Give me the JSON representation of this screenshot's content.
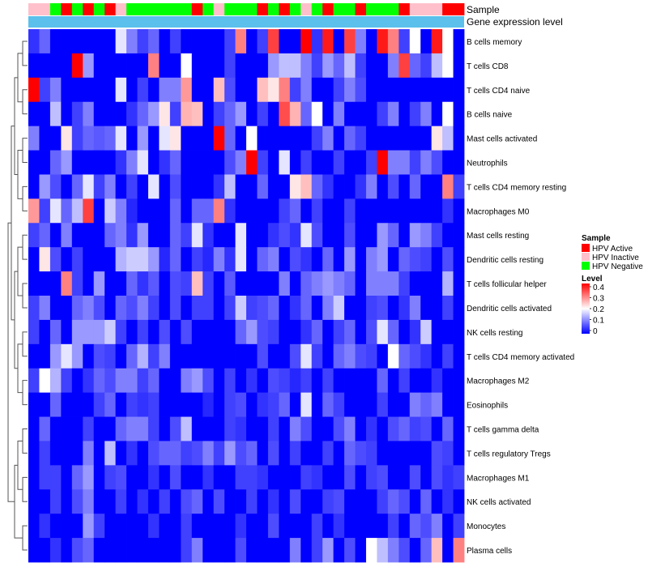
{
  "chart_data": {
    "type": "heatmap",
    "annotation_titles": {
      "sample": "Sample",
      "gene": "Gene expression level"
    },
    "legend_sample": {
      "title": "Sample",
      "entries": [
        {
          "label": "HPV Active",
          "color": "#ff0000"
        },
        {
          "label": "HPV Inactive",
          "color": "#ffc0cb"
        },
        {
          "label": "HPV Negative",
          "color": "#00ff00"
        }
      ]
    },
    "legend_level": {
      "title": "Level",
      "range": [
        0,
        0.4
      ],
      "ticks": [
        "0.4",
        "0.3",
        "0.2",
        "0.1",
        "0"
      ],
      "stops": [
        {
          "value": 0,
          "color": "#0000ff"
        },
        {
          "value": 0.2,
          "color": "#ffffff"
        },
        {
          "value": 0.4,
          "color": "#ff0000"
        }
      ]
    },
    "gene_bar_color": "#5bc0eb",
    "samples": [
      "HPV Inactive",
      "HPV Inactive",
      "HPV Negative",
      "HPV Active",
      "HPV Negative",
      "HPV Active",
      "HPV Negative",
      "HPV Active",
      "HPV Inactive",
      "HPV Negative",
      "HPV Negative",
      "HPV Negative",
      "HPV Negative",
      "HPV Negative",
      "HPV Negative",
      "HPV Active",
      "HPV Negative",
      "HPV Inactive",
      "HPV Negative",
      "HPV Negative",
      "HPV Negative",
      "HPV Active",
      "HPV Negative",
      "HPV Active",
      "HPV Negative",
      "HPV Inactive",
      "HPV Negative",
      "HPV Active",
      "HPV Negative",
      "HPV Negative",
      "HPV Active",
      "HPV Negative",
      "HPV Negative",
      "HPV Negative",
      "HPV Active",
      "HPV Inactive",
      "HPV Inactive",
      "HPV Inactive",
      "HPV Active",
      "HPV Active"
    ],
    "rows": [
      {
        "name": "B cells memory",
        "values": [
          0.04,
          0.08,
          0,
          0,
          0,
          0,
          0,
          0,
          0.18,
          0.1,
          0.05,
          0.08,
          0,
          0.05,
          0,
          0,
          0,
          0,
          0.05,
          0.3,
          0,
          0.05,
          0.35,
          0,
          0,
          0.4,
          0.04,
          0.38,
          0,
          0.35,
          0.1,
          0,
          0.38,
          0.3,
          0.05,
          0.2,
          0,
          0.38,
          0.2,
          0
        ]
      },
      {
        "name": "T cells CD8",
        "values": [
          0,
          0,
          0,
          0,
          0.4,
          0.12,
          0,
          0,
          0,
          0,
          0,
          0.3,
          0,
          0,
          0.2,
          0,
          0,
          0,
          0.05,
          0,
          0,
          0,
          0.12,
          0.15,
          0.15,
          0.1,
          0.05,
          0.12,
          0.08,
          0.15,
          0.05,
          0,
          0,
          0.1,
          0.35,
          0.08,
          0.05,
          0.15,
          0.2,
          0
        ]
      },
      {
        "name": "T cells CD4 naive",
        "values": [
          0.4,
          0.05,
          0.1,
          0,
          0,
          0,
          0,
          0,
          0.18,
          0,
          0.05,
          0,
          0.1,
          0.1,
          0.28,
          0,
          0,
          0.25,
          0.06,
          0,
          0,
          0.25,
          0.22,
          0.3,
          0.05,
          0.1,
          0,
          0,
          0.05,
          0.1,
          0.06,
          0,
          0,
          0,
          0,
          0,
          0,
          0,
          0,
          0
        ]
      },
      {
        "name": "B cells naive",
        "values": [
          0,
          0,
          0.15,
          0,
          0.05,
          0.1,
          0,
          0,
          0,
          0.04,
          0.08,
          0.12,
          0.22,
          0.05,
          0.26,
          0.25,
          0,
          0.05,
          0.08,
          0.12,
          0,
          0.05,
          0,
          0.34,
          0.26,
          0.08,
          0.2,
          0,
          0.1,
          0,
          0,
          0,
          0.05,
          0.1,
          0,
          0.05,
          0.1,
          0,
          0.2,
          0
        ]
      },
      {
        "name": "Mast cells activated",
        "values": [
          0.1,
          0,
          0,
          0.22,
          0.05,
          0.08,
          0.07,
          0.08,
          0.18,
          0,
          0.12,
          0,
          0.18,
          0.22,
          0,
          0,
          0,
          0.4,
          0.08,
          0,
          0.2,
          0,
          0,
          0,
          0,
          0,
          0.05,
          0.1,
          0,
          0.08,
          0.05,
          0,
          0,
          0,
          0,
          0,
          0,
          0.22,
          0.15,
          0
        ]
      },
      {
        "name": "Neutrophils",
        "values": [
          0,
          0,
          0.08,
          0.12,
          0,
          0,
          0,
          0,
          0.04,
          0.1,
          0.18,
          0,
          0.04,
          0.08,
          0,
          0,
          0,
          0,
          0.06,
          0.1,
          0.4,
          0.05,
          0,
          0.18,
          0,
          0.05,
          0,
          0,
          0.05,
          0,
          0,
          0.05,
          0.4,
          0.1,
          0.1,
          0.05,
          0.1,
          0.06,
          0,
          0
        ]
      },
      {
        "name": "T cells CD4 memory resting",
        "values": [
          0,
          0.12,
          0.06,
          0,
          0.08,
          0.18,
          0.05,
          0.1,
          0,
          0.05,
          0,
          0.18,
          0,
          0.06,
          0,
          0,
          0,
          0.04,
          0.15,
          0,
          0,
          0.08,
          0,
          0,
          0.22,
          0.25,
          0.08,
          0.04,
          0,
          0,
          0.04,
          0.1,
          0,
          0.06,
          0,
          0.08,
          0,
          0,
          0.3,
          0.05
        ]
      },
      {
        "name": "Macrophages M0",
        "values": [
          0.28,
          0.05,
          0.18,
          0.08,
          0.15,
          0.35,
          0,
          0.16,
          0.1,
          0.03,
          0,
          0,
          0,
          0.08,
          0,
          0.08,
          0.08,
          0.3,
          0.04,
          0,
          0,
          0,
          0,
          0.05,
          0.08,
          0,
          0.05,
          0,
          0,
          0.05,
          0,
          0,
          0,
          0,
          0,
          0,
          0,
          0,
          0.04,
          0
        ]
      },
      {
        "name": "Mast cells resting",
        "values": [
          0.05,
          0.08,
          0,
          0.1,
          0,
          0,
          0,
          0.08,
          0.1,
          0.04,
          0.12,
          0,
          0,
          0.08,
          0.05,
          0.18,
          0.04,
          0,
          0,
          0.18,
          0,
          0,
          0.04,
          0.06,
          0.04,
          0.18,
          0.06,
          0,
          0,
          0.06,
          0,
          0,
          0.12,
          0.08,
          0,
          0.12,
          0.1,
          0.05,
          0,
          0
        ]
      },
      {
        "name": "Dendritic cells resting",
        "values": [
          0,
          0.22,
          0.06,
          0,
          0.05,
          0,
          0,
          0,
          0.14,
          0.16,
          0.16,
          0.12,
          0.03,
          0.08,
          0,
          0.05,
          0.03,
          0.1,
          0.04,
          0.18,
          0,
          0.08,
          0.1,
          0,
          0.06,
          0.04,
          0,
          0.08,
          0,
          0.12,
          0,
          0.1,
          0.12,
          0,
          0.08,
          0.06,
          0.05,
          0,
          0.06,
          0
        ]
      },
      {
        "name": "T cells follicular helper",
        "values": [
          0,
          0,
          0,
          0.3,
          0.05,
          0,
          0.12,
          0,
          0,
          0.08,
          0.04,
          0.07,
          0,
          0.06,
          0.05,
          0.25,
          0.05,
          0,
          0.07,
          0,
          0,
          0,
          0,
          0.1,
          0,
          0.08,
          0.1,
          0.12,
          0.1,
          0.08,
          0,
          0.1,
          0.1,
          0.1,
          0.05,
          0,
          0,
          0,
          0.14,
          0
        ]
      },
      {
        "name": "Dendritic cells activated",
        "values": [
          0.05,
          0.1,
          0,
          0,
          0.08,
          0.1,
          0.06,
          0,
          0.08,
          0.06,
          0.1,
          0.05,
          0,
          0.06,
          0,
          0.05,
          0.05,
          0,
          0.05,
          0.16,
          0.05,
          0.06,
          0.08,
          0,
          0.04,
          0.08,
          0,
          0.1,
          0.16,
          0,
          0,
          0.05,
          0.06,
          0,
          0.04,
          0.1,
          0,
          0,
          0.05,
          0
        ]
      },
      {
        "name": "NK cells resting",
        "values": [
          0.05,
          0,
          0.08,
          0,
          0.12,
          0.12,
          0.12,
          0.16,
          0.05,
          0,
          0.05,
          0,
          0.06,
          0,
          0.06,
          0,
          0,
          0,
          0,
          0.08,
          0.12,
          0.06,
          0.05,
          0,
          0,
          0.04,
          0.08,
          0,
          0.05,
          0.08,
          0,
          0.06,
          0.18,
          0.08,
          0,
          0.04,
          0.16,
          0,
          0,
          0
        ]
      },
      {
        "name": "T cells CD4 memory activated",
        "values": [
          0,
          0,
          0.12,
          0.18,
          0.12,
          0,
          0.06,
          0.05,
          0,
          0.08,
          0.14,
          0.05,
          0.1,
          0,
          0,
          0,
          0,
          0,
          0,
          0,
          0,
          0.06,
          0,
          0,
          0.06,
          0.18,
          0.05,
          0,
          0.08,
          0.1,
          0.06,
          0.05,
          0,
          0.2,
          0.08,
          0.06,
          0.04,
          0,
          0.05,
          0
        ]
      },
      {
        "name": "Macrophages M2",
        "values": [
          0.05,
          0.2,
          0.14,
          0.05,
          0,
          0.04,
          0.08,
          0.06,
          0.1,
          0.1,
          0.05,
          0.08,
          0,
          0,
          0.1,
          0.12,
          0.06,
          0,
          0.05,
          0,
          0.04,
          0,
          0.06,
          0.05,
          0.03,
          0.05,
          0,
          0.05,
          0,
          0,
          0,
          0,
          0.08,
          0,
          0.05,
          0,
          0,
          0.04,
          0,
          0
        ]
      },
      {
        "name": "Eosinophils",
        "values": [
          0,
          0,
          0.08,
          0,
          0,
          0,
          0.05,
          0.08,
          0,
          0.05,
          0.04,
          0.05,
          0,
          0,
          0,
          0,
          0.03,
          0,
          0.05,
          0.06,
          0,
          0.04,
          0.05,
          0.08,
          0,
          0.18,
          0,
          0.08,
          0.05,
          0,
          0,
          0,
          0.05,
          0,
          0,
          0.1,
          0.08,
          0.1,
          0,
          0
        ]
      },
      {
        "name": "T cells gamma delta",
        "values": [
          0,
          0.08,
          0,
          0,
          0,
          0.05,
          0,
          0,
          0.08,
          0.1,
          0.1,
          0.05,
          0,
          0.06,
          0.15,
          0,
          0,
          0,
          0.05,
          0.04,
          0,
          0,
          0.05,
          0,
          0.1,
          0.06,
          0,
          0,
          0.06,
          0.1,
          0,
          0.04,
          0,
          0.06,
          0.08,
          0.05,
          0.06,
          0,
          0.08,
          0
        ]
      },
      {
        "name": "T cells regulatory  Tregs",
        "values": [
          0,
          0.05,
          0,
          0,
          0,
          0.1,
          0,
          0.15,
          0,
          0.04,
          0,
          0.06,
          0.08,
          0.08,
          0.05,
          0.06,
          0.1,
          0.05,
          0.12,
          0.06,
          0.08,
          0,
          0.06,
          0,
          0.05,
          0,
          0,
          0.05,
          0,
          0.08,
          0.06,
          0.05,
          0,
          0,
          0,
          0,
          0,
          0.06,
          0.05,
          0
        ]
      },
      {
        "name": "Macrophages M1",
        "values": [
          0,
          0.05,
          0.05,
          0,
          0.08,
          0.12,
          0,
          0.05,
          0.06,
          0,
          0,
          0.04,
          0,
          0.06,
          0,
          0,
          0.04,
          0,
          0,
          0.05,
          0.05,
          0.04,
          0,
          0,
          0,
          0.05,
          0.04,
          0,
          0,
          0.06,
          0,
          0.05,
          0.06,
          0,
          0,
          0.06,
          0,
          0.06,
          0.04,
          0.05
        ]
      },
      {
        "name": "NK cells activated",
        "values": [
          0,
          0,
          0.05,
          0,
          0.06,
          0.1,
          0,
          0,
          0.05,
          0,
          0.04,
          0,
          0.05,
          0,
          0.06,
          0.08,
          0,
          0.06,
          0,
          0,
          0.05,
          0,
          0.04,
          0,
          0.06,
          0,
          0,
          0.05,
          0.06,
          0,
          0,
          0,
          0.05,
          0.08,
          0.06,
          0,
          0.08,
          0,
          0.04,
          0
        ]
      },
      {
        "name": "Monocytes",
        "values": [
          0,
          0.04,
          0,
          0,
          0,
          0.12,
          0.05,
          0,
          0,
          0,
          0,
          0.04,
          0,
          0,
          0.05,
          0,
          0,
          0,
          0,
          0.04,
          0,
          0,
          0.06,
          0,
          0,
          0,
          0.05,
          0,
          0.04,
          0,
          0,
          0,
          0,
          0.05,
          0,
          0.08,
          0.06,
          0.1,
          0,
          0.05
        ]
      },
      {
        "name": "Plasma cells",
        "values": [
          0,
          0,
          0.04,
          0,
          0.06,
          0.08,
          0,
          0,
          0,
          0,
          0,
          0,
          0,
          0,
          0.05,
          0.1,
          0,
          0,
          0,
          0.06,
          0,
          0,
          0,
          0,
          0.1,
          0,
          0.05,
          0.12,
          0,
          0.06,
          0,
          0.2,
          0.15,
          0.1,
          0.06,
          0,
          0.08,
          0.25,
          0,
          0.3
        ]
      }
    ]
  }
}
